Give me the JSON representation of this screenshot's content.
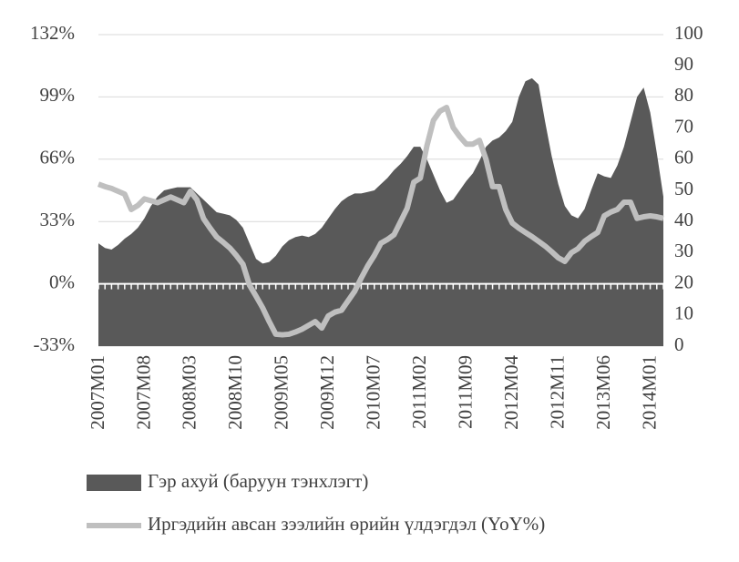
{
  "chart_data": {
    "type": "line",
    "categories": [
      "2007M01",
      null,
      null,
      null,
      null,
      null,
      null,
      "2007M08",
      null,
      null,
      null,
      null,
      null,
      null,
      "2008M03",
      null,
      null,
      null,
      null,
      null,
      null,
      "2008M10",
      null,
      null,
      null,
      null,
      null,
      null,
      "2009M05",
      null,
      null,
      null,
      null,
      null,
      null,
      "2009M12",
      null,
      null,
      null,
      null,
      null,
      null,
      "2010M07",
      null,
      null,
      null,
      null,
      null,
      null,
      "2011M02",
      null,
      null,
      null,
      null,
      null,
      null,
      "2011M09",
      null,
      null,
      null,
      null,
      null,
      null,
      "2012M04",
      null,
      null,
      null,
      null,
      null,
      null,
      "2012M11",
      null,
      null,
      null,
      null,
      null,
      null,
      "2013M06",
      null,
      null,
      null,
      null,
      null,
      null,
      "2014M01",
      null,
      null
    ],
    "series": [
      {
        "name": "Гэр ахуй (баруун тэнхлэгт)",
        "type": "area",
        "axis": "y2",
        "color": "#595959",
        "values": [
          33,
          31.5,
          31,
          32.5,
          34.5,
          36,
          38,
          41,
          45,
          48,
          50,
          50.5,
          51,
          51,
          51,
          49,
          47,
          45,
          43,
          42.5,
          42,
          40.5,
          38,
          33,
          28,
          26.5,
          27,
          29,
          32,
          34,
          35,
          35.5,
          35,
          36,
          38,
          41,
          44,
          46.5,
          48,
          49,
          49,
          49.5,
          50,
          52,
          54,
          56.5,
          58.5,
          61,
          64,
          64,
          60,
          55,
          50,
          46,
          47,
          50,
          53,
          55.5,
          59.5,
          64,
          66,
          67,
          69,
          72,
          80,
          85,
          86,
          84,
          72,
          61,
          52,
          45,
          42,
          41,
          44,
          50,
          55.5,
          54.5,
          54,
          58,
          64,
          72,
          80,
          83,
          75,
          62,
          48
        ]
      },
      {
        "name": "Иргэдийн авсан зээлийн өрийн үлдэгдэл (YoY%)",
        "type": "line",
        "color": "#bfbfbf",
        "values": [
          52.8,
          51.5,
          50.5,
          49,
          47.5,
          39.4,
          41.5,
          45,
          44,
          43,
          44.5,
          46,
          44.5,
          43,
          49,
          44.5,
          34.6,
          29.5,
          24.8,
          22,
          19,
          15,
          10.4,
          -0.7,
          -6.6,
          -12.7,
          -20,
          -26.7,
          -27,
          -26.7,
          -25.5,
          -24,
          -22,
          -20,
          -23.4,
          -17,
          -15,
          -14,
          -9,
          -4,
          3,
          9.5,
          15,
          21.5,
          23.5,
          26,
          33,
          40,
          53.8,
          56,
          73,
          86.6,
          91.5,
          93.4,
          82.8,
          78,
          74,
          74,
          76,
          66,
          51.5,
          51.5,
          39.4,
          32.2,
          29.5,
          27.2,
          25,
          22.5,
          20,
          17,
          13.8,
          11.9,
          16.5,
          18.6,
          22.5,
          25,
          27.2,
          36,
          38,
          39.4,
          43.2,
          43.2,
          34.7,
          35.5,
          36,
          35.5,
          34.7
        ]
      }
    ],
    "ylim": [
      -33,
      132
    ],
    "yticks": [
      {
        "value": -33,
        "label": "-33%"
      },
      {
        "value": 0,
        "label": "0%"
      },
      {
        "value": 33,
        "label": "33%"
      },
      {
        "value": 66,
        "label": "66%"
      },
      {
        "value": 99,
        "label": "99%"
      },
      {
        "value": 132,
        "label": "132%"
      }
    ],
    "y2lim": [
      0,
      100
    ],
    "y2ticks": [
      0,
      10,
      20,
      30,
      40,
      50,
      60,
      70,
      80,
      90,
      100
    ],
    "grid": true
  }
}
